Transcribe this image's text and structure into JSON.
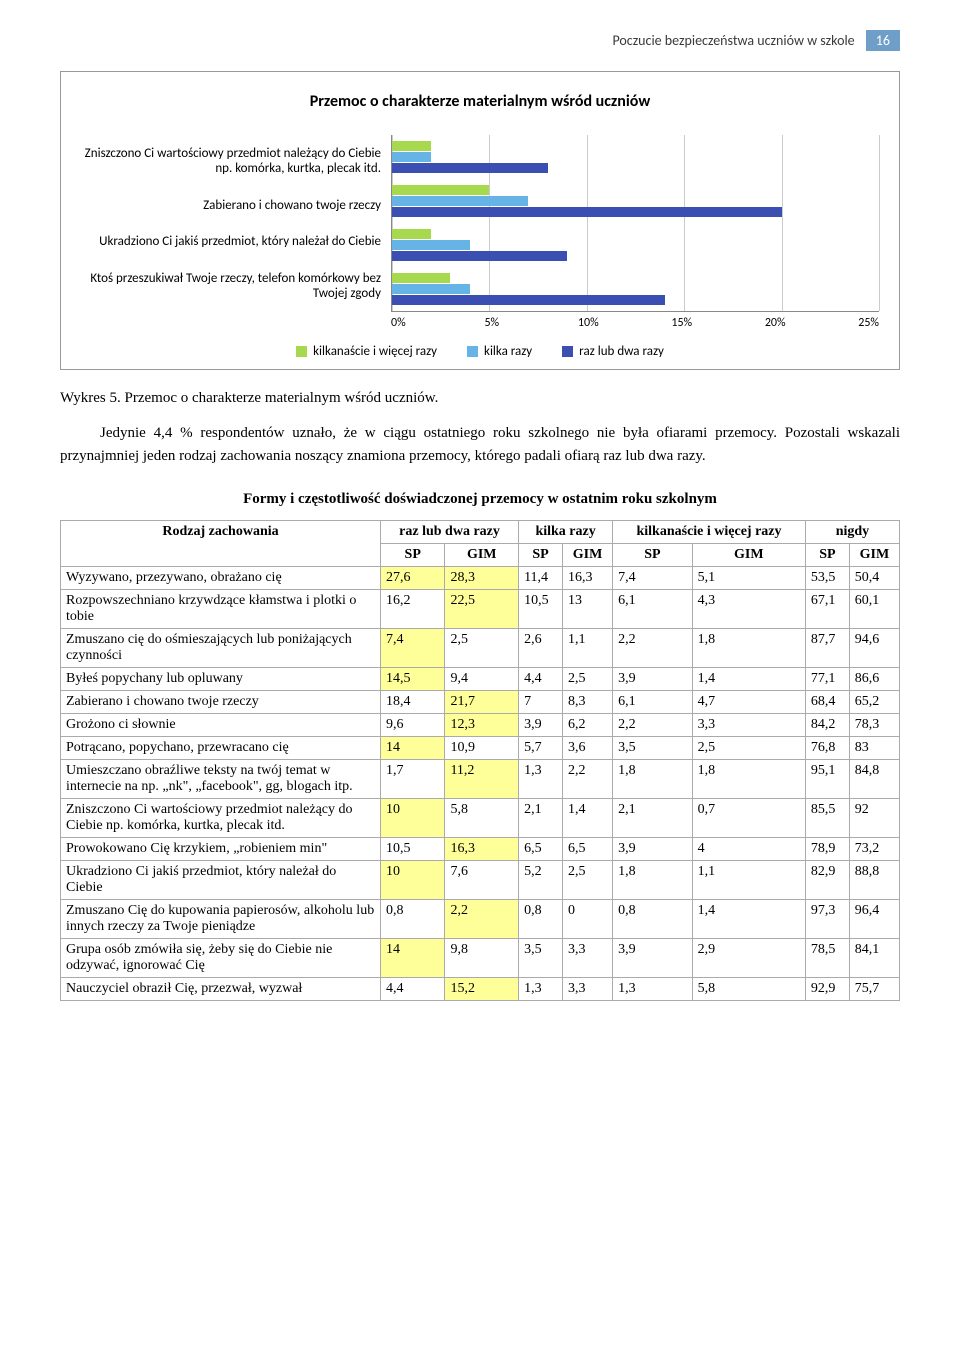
{
  "header": {
    "title": "Poczucie bezpieczeństwa uczniów w szkole",
    "page_number": "16"
  },
  "chart": {
    "type": "bar",
    "title": "Przemoc o charakterze materialnym wśród uczniów",
    "categories": [
      "Zniszczono Ci wartościowy przedmiot należący do Ciebie np. komórka, kurtka, plecak itd.",
      "Zabierano i chowano twoje rzeczy",
      "Ukradziono Ci jakiś przedmiot, który należał do Ciebie",
      "Ktoś przeszukiwał Twoje rzeczy, telefon komórkowy bez Twojej zgody"
    ],
    "series": [
      {
        "name": "kilkanaście i więcej razy",
        "color": "#a6d94d",
        "values": [
          2,
          5,
          2,
          3
        ]
      },
      {
        "name": "kilka razy",
        "color": "#66b3e6",
        "values": [
          2,
          7,
          4,
          4
        ]
      },
      {
        "name": "raz lub dwa razy",
        "color": "#3b4fb3",
        "values": [
          8,
          20,
          9,
          14
        ]
      }
    ],
    "x_ticks": [
      "0%",
      "5%",
      "10%",
      "15%",
      "20%",
      "25%"
    ],
    "x_max": 25,
    "background_color": "#ffffff",
    "grid_color": "#cccccc",
    "legend_marker": "square"
  },
  "caption": "Wykres 5. Przemoc o charakterze materialnym wśród uczniów.",
  "body_text": "Jedynie 4,4 % respondentów uznało, że w ciągu ostatniego roku szkolnego nie była ofiarami przemocy. Pozostali wskazali przynajmniej jeden rodzaj zachowania noszący znamiona przemocy, którego padali ofiarą raz lub dwa razy.",
  "table": {
    "title": "Formy i częstotliwość doświadczonej przemocy w ostatnim roku szkolnym",
    "first_col_header": "Rodzaj zachowania",
    "group_headers": [
      "raz lub dwa razy",
      "kilka razy",
      "kilkanaście i więcej razy",
      "nigdy"
    ],
    "sub_headers": [
      "SP",
      "GIM"
    ],
    "highlight_color": "#ffff99",
    "rows": [
      {
        "label": "Wyzywano, przezywano, obrażano cię",
        "cells": [
          "27,6",
          "28,3",
          "11,4",
          "16,3",
          "7,4",
          "5,1",
          "53,5",
          "50,4"
        ],
        "hi": [
          1,
          1,
          0,
          0,
          0,
          0,
          0,
          0
        ]
      },
      {
        "label": "Rozpowszechniano krzywdzące kłamstwa i plotki o tobie",
        "cells": [
          "16,2",
          "22,5",
          "10,5",
          "13",
          "6,1",
          "4,3",
          "67,1",
          "60,1"
        ],
        "hi": [
          0,
          1,
          0,
          0,
          0,
          0,
          0,
          0
        ]
      },
      {
        "label": "Zmuszano cię do ośmieszających lub poniżających czynności",
        "cells": [
          "7,4",
          "2,5",
          "2,6",
          "1,1",
          "2,2",
          "1,8",
          "87,7",
          "94,6"
        ],
        "hi": [
          1,
          0,
          0,
          0,
          0,
          0,
          0,
          0
        ]
      },
      {
        "label": "Byłeś popychany lub opluwany",
        "cells": [
          "14,5",
          "9,4",
          "4,4",
          "2,5",
          "3,9",
          "1,4",
          "77,1",
          "86,6"
        ],
        "hi": [
          1,
          0,
          0,
          0,
          0,
          0,
          0,
          0
        ]
      },
      {
        "label": "Zabierano i chowano twoje rzeczy",
        "cells": [
          "18,4",
          "21,7",
          "7",
          "8,3",
          "6,1",
          "4,7",
          "68,4",
          "65,2"
        ],
        "hi": [
          0,
          1,
          0,
          0,
          0,
          0,
          0,
          0
        ]
      },
      {
        "label": "Grożono ci słownie",
        "cells": [
          "9,6",
          "12,3",
          "3,9",
          "6,2",
          "2,2",
          "3,3",
          "84,2",
          "78,3"
        ],
        "hi": [
          0,
          1,
          0,
          0,
          0,
          0,
          0,
          0
        ]
      },
      {
        "label": "Potrącano, popychano, przewracano cię",
        "cells": [
          "14",
          "10,9",
          "5,7",
          "3,6",
          "3,5",
          "2,5",
          "76,8",
          "83"
        ],
        "hi": [
          1,
          0,
          0,
          0,
          0,
          0,
          0,
          0
        ]
      },
      {
        "label": "Umieszczano obraźliwe teksty na twój temat w internecie na np. „nk\", „facebook\", gg, blogach itp.",
        "cells": [
          "1,7",
          "11,2",
          "1,3",
          "2,2",
          "1,8",
          "1,8",
          "95,1",
          "84,8"
        ],
        "hi": [
          0,
          1,
          0,
          0,
          0,
          0,
          0,
          0
        ]
      },
      {
        "label": "Zniszczono Ci wartościowy przedmiot należący do Ciebie np. komórka, kurtka, plecak itd.",
        "cells": [
          "10",
          "5,8",
          "2,1",
          "1,4",
          "2,1",
          "0,7",
          "85,5",
          "92"
        ],
        "hi": [
          1,
          0,
          0,
          0,
          0,
          0,
          0,
          0
        ]
      },
      {
        "label": "Prowokowano Cię krzykiem, „robieniem min\"",
        "cells": [
          "10,5",
          "16,3",
          "6,5",
          "6,5",
          "3,9",
          "4",
          "78,9",
          "73,2"
        ],
        "hi": [
          0,
          1,
          0,
          0,
          0,
          0,
          0,
          0
        ]
      },
      {
        "label": "Ukradziono Ci jakiś przedmiot, który należał do Ciebie",
        "cells": [
          "10",
          "7,6",
          "5,2",
          "2,5",
          "1,8",
          "1,1",
          "82,9",
          "88,8"
        ],
        "hi": [
          1,
          0,
          0,
          0,
          0,
          0,
          0,
          0
        ]
      },
      {
        "label": "Zmuszano Cię do kupowania papierosów, alkoholu lub innych rzeczy za Twoje pieniądze",
        "cells": [
          "0,8",
          "2,2",
          "0,8",
          "0",
          "0,8",
          "1,4",
          "97,3",
          "96,4"
        ],
        "hi": [
          0,
          1,
          0,
          0,
          0,
          0,
          0,
          0
        ]
      },
      {
        "label": "Grupa osób zmówiła się, żeby się do Ciebie nie odzywać, ignorować Cię",
        "cells": [
          "14",
          "9,8",
          "3,5",
          "3,3",
          "3,9",
          "2,9",
          "78,5",
          "84,1"
        ],
        "hi": [
          1,
          0,
          0,
          0,
          0,
          0,
          0,
          0
        ]
      },
      {
        "label": "Nauczyciel obraził Cię, przezwał, wyzwał",
        "cells": [
          "4,4",
          "15,2",
          "1,3",
          "3,3",
          "1,3",
          "5,8",
          "92,9",
          "75,7"
        ],
        "hi": [
          0,
          1,
          0,
          0,
          0,
          0,
          0,
          0
        ]
      }
    ]
  }
}
